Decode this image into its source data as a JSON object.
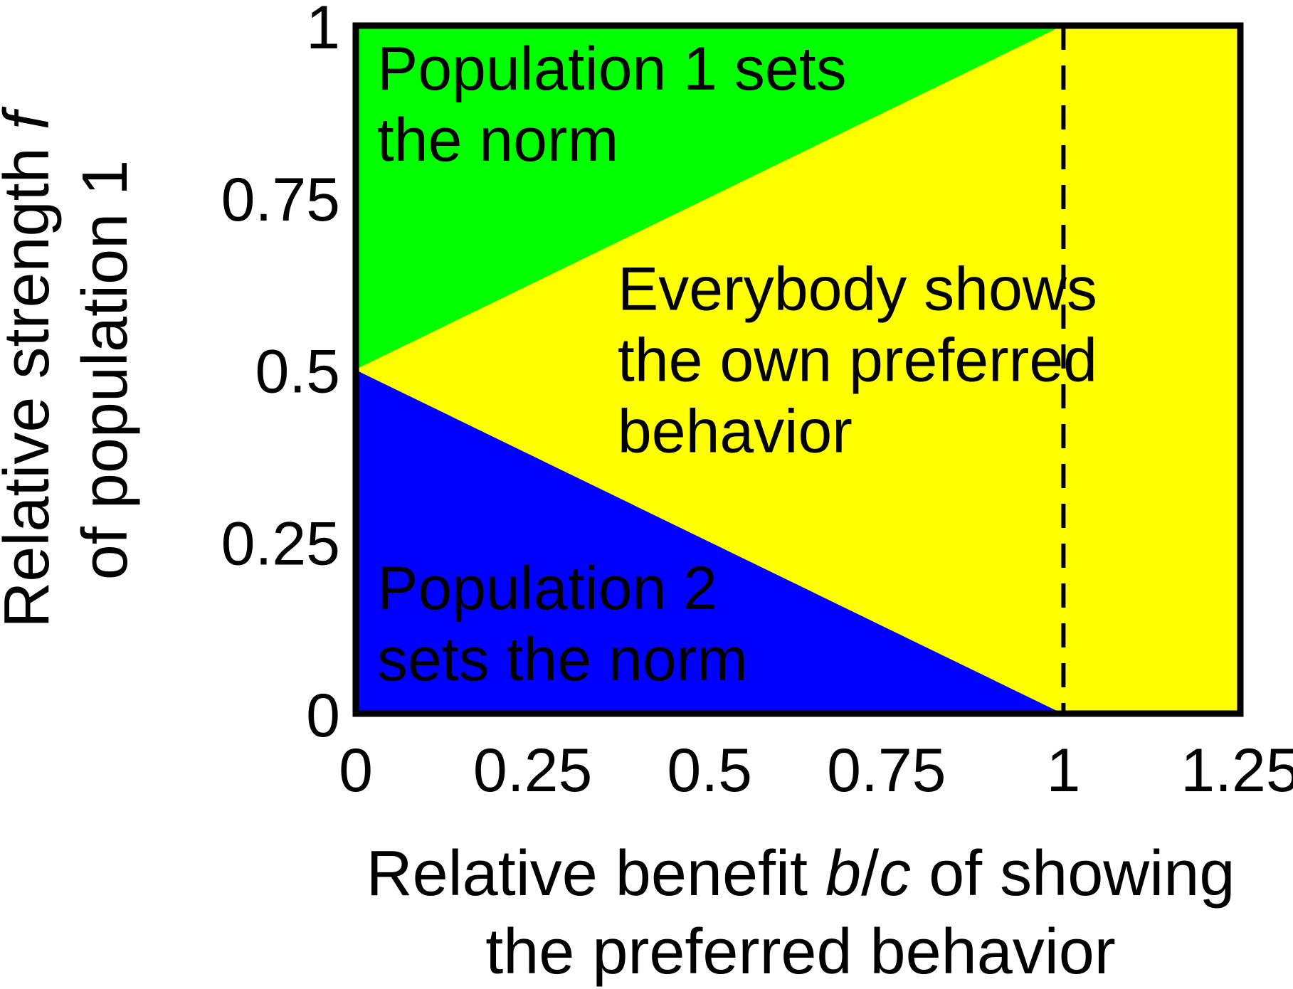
{
  "chart_data": {
    "type": "area",
    "xlim": [
      0,
      1.25
    ],
    "ylim": [
      0,
      1
    ],
    "x_ticks": [
      "0",
      "0.25",
      "0.5",
      "0.75",
      "1",
      "1.25"
    ],
    "x_tick_values": [
      0,
      0.25,
      0.5,
      0.75,
      1,
      1.25
    ],
    "y_ticks": [
      "0",
      "0.25",
      "0.5",
      "0.75",
      "1"
    ],
    "y_tick_values": [
      0,
      0.25,
      0.5,
      0.75,
      1
    ],
    "xlabel_lines": [
      {
        "parts": [
          {
            "text": "Relative benefit ",
            "italic": false
          },
          {
            "text": "b",
            "italic": true
          },
          {
            "text": "/",
            "italic": false
          },
          {
            "text": "c",
            "italic": true
          },
          {
            "text": " of showing",
            "italic": false
          }
        ]
      },
      {
        "parts": [
          {
            "text": "the preferred behavior",
            "italic": false
          }
        ]
      }
    ],
    "ylabel_lines": [
      {
        "parts": [
          {
            "text": "Relative strength ",
            "italic": false
          },
          {
            "text": "f",
            "italic": true
          }
        ]
      },
      {
        "parts": [
          {
            "text": "of population 1",
            "italic": false
          }
        ]
      }
    ],
    "regions": [
      {
        "name": "population-1-region",
        "color": "#00ff00",
        "points": [
          [
            0,
            0.5
          ],
          [
            0,
            1
          ],
          [
            1,
            1
          ]
        ],
        "label_lines": [
          "Population 1 sets",
          "the norm"
        ],
        "label_anchor": [
          0.03,
          0.94
        ]
      },
      {
        "name": "population-2-region",
        "color": "#0000ff",
        "points": [
          [
            0,
            0
          ],
          [
            0,
            0.5
          ],
          [
            1,
            0
          ]
        ],
        "label_lines": [
          "Population 2",
          "sets the norm"
        ],
        "label_anchor": [
          0.03,
          0.185
        ]
      },
      {
        "name": "everybody-region",
        "color": "#ffff00",
        "points": [
          [
            0,
            0.5
          ],
          [
            1,
            1
          ],
          [
            1.25,
            1
          ],
          [
            1.25,
            0
          ],
          [
            1,
            0
          ]
        ],
        "label_lines": [
          "Everybody shows",
          "the own preferred",
          "behavior"
        ],
        "label_anchor": [
          0.37,
          0.62
        ]
      }
    ],
    "reference_line": {
      "x": 1,
      "style": "dashed",
      "color": "#000000"
    },
    "grid": false,
    "legend": "none"
  }
}
